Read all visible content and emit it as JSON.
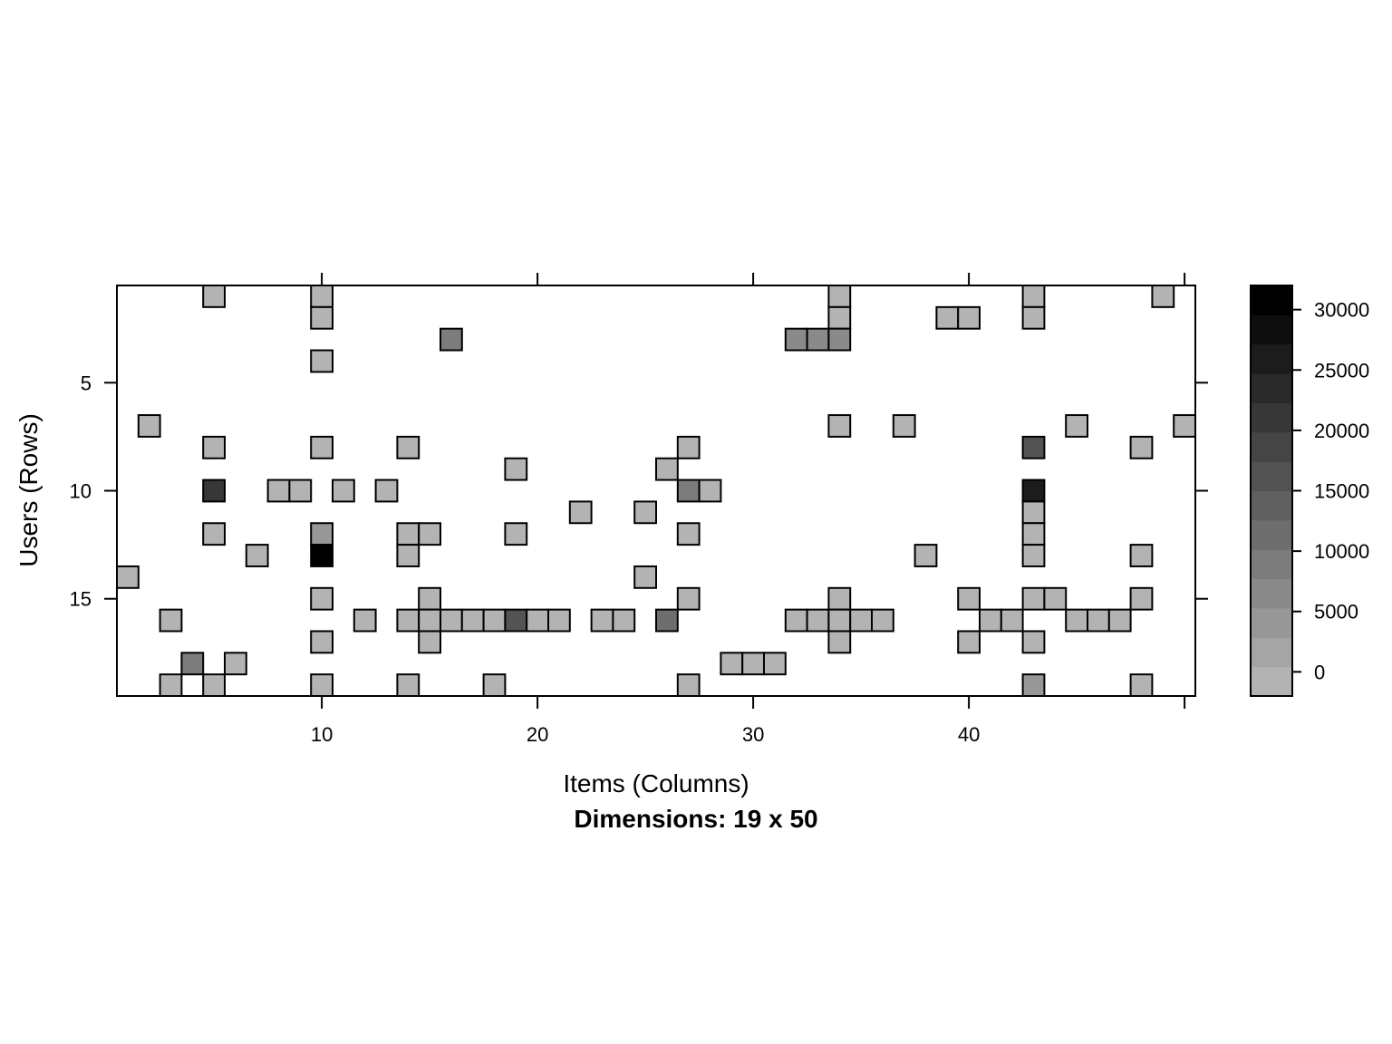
{
  "chart_data": {
    "type": "heatmap",
    "title": "",
    "xlabel": "Items (Columns)",
    "ylabel": "Users (Rows)",
    "subtitle": "Dimensions: 19 x 50",
    "n_rows": 19,
    "n_cols": 50,
    "xlim": [
      0.5,
      50.5
    ],
    "ylim": [
      0.5,
      19.5
    ],
    "x_ticks": [
      10,
      20,
      30,
      40
    ],
    "y_ticks": [
      5,
      10,
      15
    ],
    "y_reversed": true,
    "colorbar": {
      "min": -2000,
      "max": 32000,
      "ticks": [
        0,
        5000,
        10000,
        15000,
        20000,
        25000,
        30000
      ],
      "levels": 14,
      "color_low": "#b3b3b3",
      "color_high": "#000000"
    },
    "cells": [
      [
        1,
        5,
        0
      ],
      [
        1,
        10,
        0
      ],
      [
        1,
        34,
        0
      ],
      [
        1,
        43,
        0
      ],
      [
        1,
        49,
        0
      ],
      [
        2,
        10,
        0
      ],
      [
        2,
        34,
        0
      ],
      [
        2,
        39,
        0
      ],
      [
        2,
        40,
        0
      ],
      [
        2,
        43,
        0
      ],
      [
        3,
        16,
        10000
      ],
      [
        3,
        32,
        7000
      ],
      [
        3,
        33,
        7000
      ],
      [
        3,
        34,
        7000
      ],
      [
        4,
        10,
        0
      ],
      [
        7,
        2,
        0
      ],
      [
        7,
        34,
        0
      ],
      [
        7,
        37,
        0
      ],
      [
        7,
        45,
        0
      ],
      [
        7,
        50,
        0
      ],
      [
        8,
        5,
        0
      ],
      [
        8,
        10,
        0
      ],
      [
        8,
        14,
        0
      ],
      [
        8,
        27,
        0
      ],
      [
        8,
        43,
        15000
      ],
      [
        8,
        48,
        0
      ],
      [
        9,
        19,
        0
      ],
      [
        9,
        26,
        0
      ],
      [
        10,
        5,
        20000
      ],
      [
        10,
        8,
        0
      ],
      [
        10,
        9,
        0
      ],
      [
        10,
        11,
        0
      ],
      [
        10,
        13,
        0
      ],
      [
        10,
        27,
        10000
      ],
      [
        10,
        28,
        0
      ],
      [
        10,
        43,
        25000
      ],
      [
        11,
        22,
        0
      ],
      [
        11,
        25,
        0
      ],
      [
        11,
        43,
        0
      ],
      [
        12,
        5,
        0
      ],
      [
        12,
        10,
        5000
      ],
      [
        12,
        14,
        0
      ],
      [
        12,
        15,
        0
      ],
      [
        12,
        19,
        0
      ],
      [
        12,
        27,
        0
      ],
      [
        12,
        43,
        0
      ],
      [
        13,
        7,
        0
      ],
      [
        13,
        10,
        32000
      ],
      [
        13,
        14,
        0
      ],
      [
        13,
        38,
        0
      ],
      [
        13,
        43,
        0
      ],
      [
        13,
        48,
        0
      ],
      [
        14,
        1,
        0
      ],
      [
        14,
        25,
        0
      ],
      [
        15,
        10,
        0
      ],
      [
        15,
        15,
        0
      ],
      [
        15,
        27,
        0
      ],
      [
        15,
        34,
        0
      ],
      [
        15,
        40,
        0
      ],
      [
        15,
        43,
        0
      ],
      [
        15,
        44,
        0
      ],
      [
        15,
        48,
        0
      ],
      [
        16,
        3,
        0
      ],
      [
        16,
        12,
        0
      ],
      [
        16,
        14,
        0
      ],
      [
        16,
        15,
        0
      ],
      [
        16,
        16,
        0
      ],
      [
        16,
        17,
        0
      ],
      [
        16,
        18,
        0
      ],
      [
        16,
        19,
        15000
      ],
      [
        16,
        20,
        0
      ],
      [
        16,
        21,
        0
      ],
      [
        16,
        23,
        0
      ],
      [
        16,
        24,
        0
      ],
      [
        16,
        26,
        12000
      ],
      [
        16,
        32,
        0
      ],
      [
        16,
        33,
        0
      ],
      [
        16,
        34,
        0
      ],
      [
        16,
        35,
        0
      ],
      [
        16,
        36,
        0
      ],
      [
        16,
        41,
        0
      ],
      [
        16,
        42,
        0
      ],
      [
        16,
        45,
        0
      ],
      [
        16,
        46,
        0
      ],
      [
        16,
        47,
        0
      ],
      [
        17,
        10,
        0
      ],
      [
        17,
        15,
        0
      ],
      [
        17,
        34,
        0
      ],
      [
        17,
        40,
        0
      ],
      [
        17,
        43,
        0
      ],
      [
        18,
        4,
        10000
      ],
      [
        18,
        6,
        0
      ],
      [
        18,
        29,
        0
      ],
      [
        18,
        30,
        0
      ],
      [
        18,
        31,
        0
      ],
      [
        19,
        3,
        0
      ],
      [
        19,
        5,
        0
      ],
      [
        19,
        10,
        0
      ],
      [
        19,
        14,
        0
      ],
      [
        19,
        18,
        0
      ],
      [
        19,
        27,
        0
      ],
      [
        19,
        43,
        5000
      ],
      [
        19,
        48,
        0
      ]
    ]
  }
}
